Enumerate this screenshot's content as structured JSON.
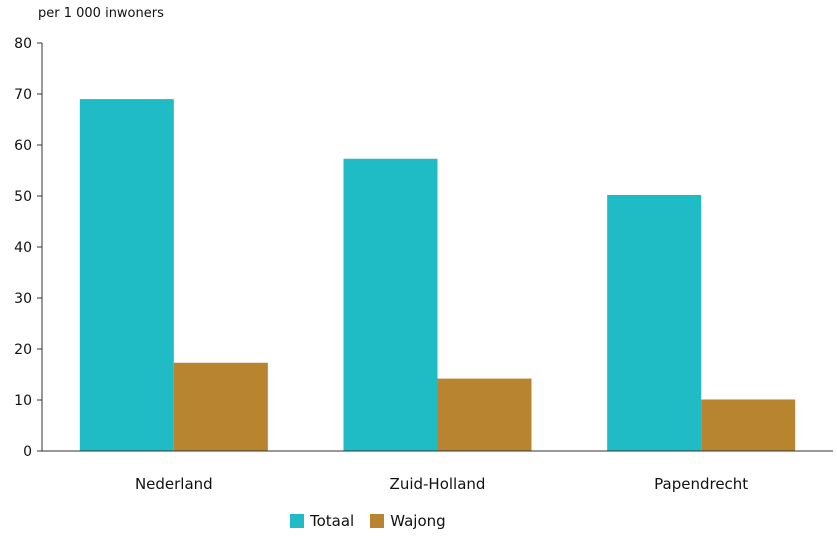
{
  "chart_data": {
    "type": "bar",
    "unit_label": "per 1 000 inwoners",
    "categories": [
      "Nederland",
      "Zuid-Holland",
      "Papendrecht"
    ],
    "series": [
      {
        "name": "Totaal",
        "color": "#1fbcc6",
        "values": [
          69,
          57.3,
          50.2
        ]
      },
      {
        "name": "Wajong",
        "color": "#b8842f",
        "values": [
          17.3,
          14.2,
          10.1
        ]
      }
    ],
    "ylim": [
      0,
      80
    ],
    "yticks": [
      0,
      10,
      20,
      30,
      40,
      50,
      60,
      70,
      80
    ],
    "grid": false,
    "legend_position": "bottom"
  }
}
